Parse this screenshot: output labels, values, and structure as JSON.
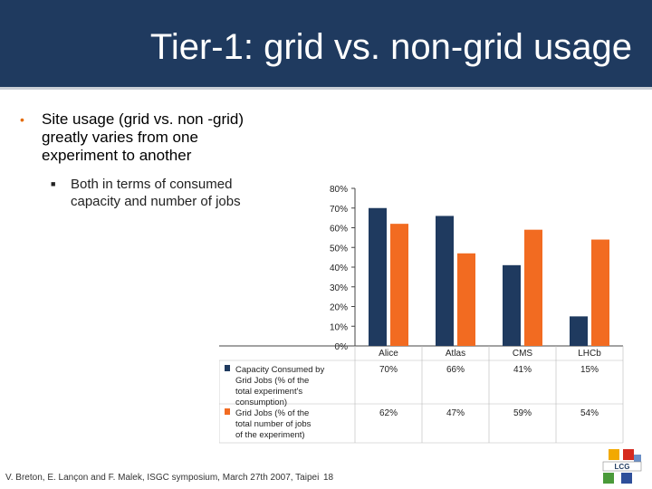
{
  "slide": {
    "title": "Tier-1: grid vs. non-grid usage",
    "bullet1": "Site usage (grid vs. non -grid) greatly varies from one experiment to another",
    "bullet2": "Both in terms of consumed capacity and number of jobs",
    "footer": "V. Breton, E. Lançon and F. Malek, ISGC symposium, March 27th 2007, Taipei",
    "page_number": "18",
    "logo_text": "LCG"
  },
  "colors": {
    "header": "#1f3a5f",
    "series_capacity": "#1f3a5f",
    "series_jobs": "#f26b21",
    "bullet": "#e46c0a"
  },
  "chart_data": {
    "type": "bar",
    "categories": [
      "Alice",
      "Atlas",
      "CMS",
      "LHCb"
    ],
    "series": [
      {
        "name": "Capacity Consumed by Grid Jobs (% of the total experiment's consumption)",
        "values": [
          70,
          66,
          41,
          15
        ],
        "labels": [
          "70%",
          "66%",
          "41%",
          "15%"
        ]
      },
      {
        "name": "Grid Jobs (% of the total number of jobs of the experiment)",
        "values": [
          62,
          47,
          59,
          54
        ],
        "labels": [
          "62%",
          "47%",
          "59%",
          "54%"
        ]
      }
    ],
    "ylim": [
      0,
      80
    ],
    "yticks": [
      "0%",
      "10%",
      "20%",
      "30%",
      "40%",
      "50%",
      "60%",
      "70%",
      "80%"
    ],
    "legend": "data-table-below",
    "grid": false
  }
}
